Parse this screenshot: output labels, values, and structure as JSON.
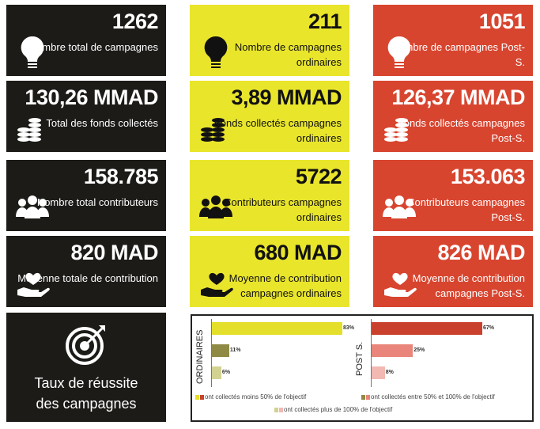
{
  "colors": {
    "black": "#1c1b18",
    "yellow": "#e9e52b",
    "red": "#d8452f"
  },
  "cards": {
    "total": [
      {
        "value": "1262",
        "label": "Nombre total de campagnes",
        "icon": "lightbulb-icon"
      },
      {
        "value": "130,26 MMAD",
        "label": "Total des fonds collectés",
        "icon": "coins-icon"
      },
      {
        "value": "158.785",
        "label": "Nombre total contributeurs",
        "icon": "users-icon"
      },
      {
        "value": "820 MAD",
        "label": "Moyenne totale de contribution",
        "icon": "heart-hand-icon"
      }
    ],
    "ordinaires": [
      {
        "value": "211",
        "label": "Nombre de campagnes ordinaires",
        "icon": "lightbulb-icon"
      },
      {
        "value": "3,89 MMAD",
        "label": "Fonds collectés campagnes ordinaires",
        "icon": "coins-icon"
      },
      {
        "value": "5722",
        "label": "Contributeurs campagnes ordinaires",
        "icon": "users-icon"
      },
      {
        "value": "680 MAD",
        "label": "Moyenne de contribution campagnes ordinaires",
        "icon": "heart-hand-icon"
      }
    ],
    "post": [
      {
        "value": "1051",
        "label": "Nombre de campagnes Post-S.",
        "icon": "lightbulb-icon"
      },
      {
        "value": "126,37 MMAD",
        "label": "Fonds collectés campagnes Post-S.",
        "icon": "coins-icon"
      },
      {
        "value": "153.063",
        "label": "Contributeurs campagnes Post-S.",
        "icon": "users-icon"
      },
      {
        "value": "826 MAD",
        "label": "Moyenne de contribution campagnes Post-S.",
        "icon": "heart-hand-icon"
      }
    ]
  },
  "taux": {
    "line1": "Taux de réussite",
    "line2": "des campagnes",
    "icon": "target-icon"
  },
  "chart_data": {
    "type": "bar",
    "orientation": "horizontal",
    "unit": "%",
    "groups": [
      {
        "name": "ORDINAIRES",
        "values": [
          83,
          11,
          6
        ],
        "labels": [
          "83%",
          "11%",
          "6%"
        ],
        "colors": [
          "#e3df2a",
          "#8e8a45",
          "#d2d291"
        ]
      },
      {
        "name": "POST S.",
        "values": [
          67,
          25,
          8
        ],
        "labels": [
          "67%",
          "25%",
          "8%"
        ],
        "colors": [
          "#c9412c",
          "#e9857a",
          "#f2b8b2"
        ]
      }
    ],
    "legend": [
      "ont collectés moins 50% de l'objectif",
      "ont collectés entre 50% et 100% de l'objectif",
      "ont collectés plus de 100% de l'objectif"
    ],
    "legend_placement": "bottom"
  }
}
